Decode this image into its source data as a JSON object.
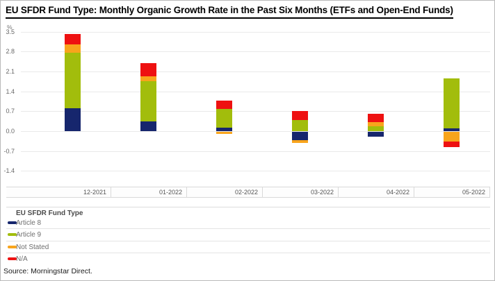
{
  "title": "EU SFDR Fund Type: Monthly Organic Growth Rate in the Past Six Months (ETFs and Open-End Funds)",
  "source": "Source: Morningstar Direct.",
  "legend": {
    "title": "EU SFDR Fund Type"
  },
  "chart_data": {
    "type": "bar",
    "stacked": true,
    "title": "EU SFDR Fund Type: Monthly Organic Growth Rate in the Past Six Months (ETFs and Open-End Funds)",
    "ylabel": "%",
    "unit_label": "%",
    "categories": [
      "12-2021",
      "01-2022",
      "02-2022",
      "03-2022",
      "04-2022",
      "05-2022"
    ],
    "series": [
      {
        "name": "Article 8",
        "color": "#16266d",
        "values": [
          0.8,
          0.35,
          0.12,
          -0.29,
          -0.16,
          0.1
        ]
      },
      {
        "name": "Article 9",
        "color": "#a2bd0c",
        "values": [
          1.97,
          1.4,
          0.65,
          0.38,
          0.18,
          1.76
        ]
      },
      {
        "name": "Not Stated",
        "color": "#f8a41c",
        "values": [
          0.29,
          0.19,
          -0.07,
          -0.1,
          0.13,
          -0.33
        ]
      },
      {
        "name": "N/A",
        "color": "#ee1111",
        "values": [
          0.37,
          0.45,
          0.31,
          0.33,
          0.3,
          -0.2
        ]
      }
    ],
    "yticks": [
      "3.5",
      "2.8",
      "2.1",
      "1.4",
      "0.7",
      "0.0",
      "-0.7",
      "-1.4"
    ],
    "ylim": [
      -1.75,
      3.6
    ],
    "grid": true,
    "legend_position": "bottom"
  }
}
